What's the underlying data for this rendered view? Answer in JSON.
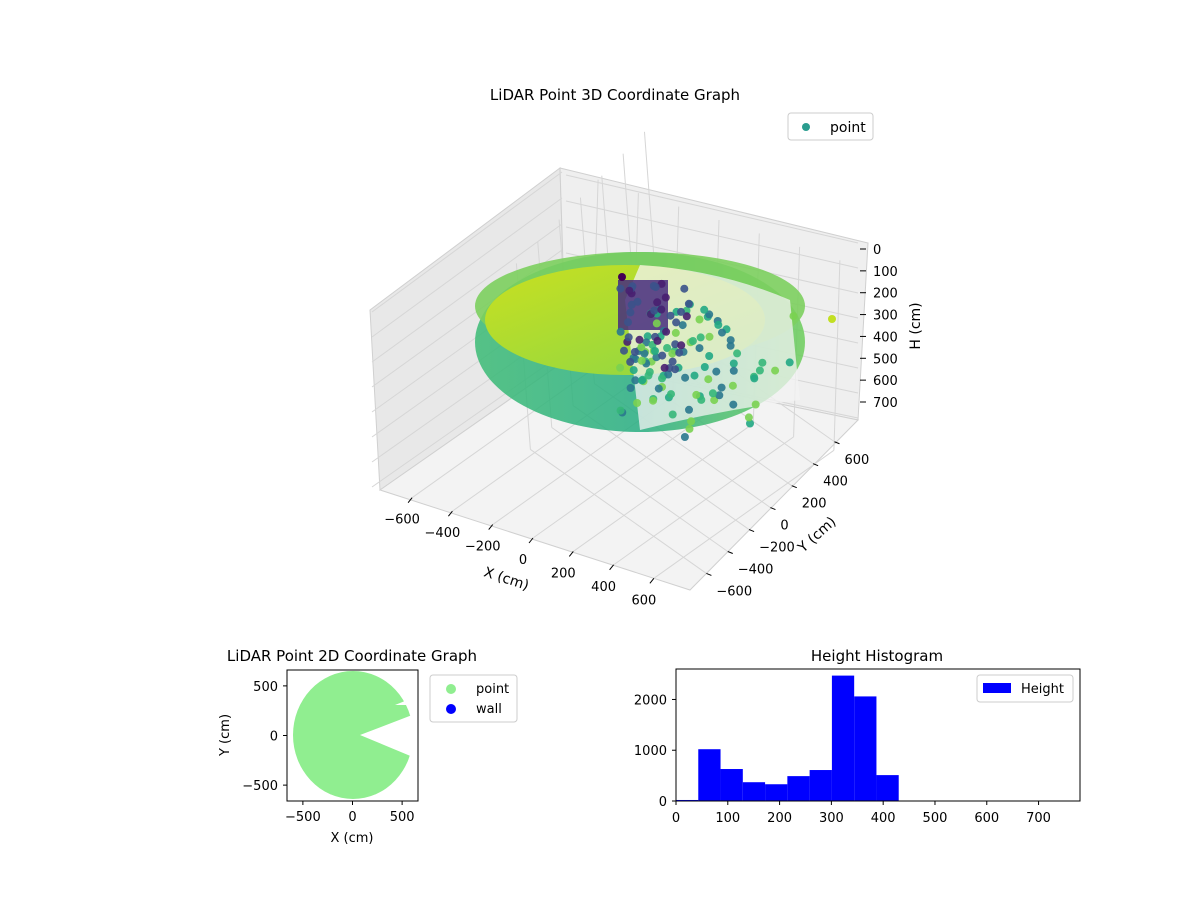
{
  "chart_data": [
    {
      "type": "scatter",
      "title": "LiDAR Point 3D Coordinate Graph",
      "xlabel": "X (cm)",
      "ylabel": "Y (cm)",
      "zlabel": "H (cm)",
      "legend": [
        "point"
      ],
      "legend_loc": "upper right",
      "grid": true,
      "x_ticks": [
        "−600",
        "−400",
        "−200",
        "0",
        "200",
        "400",
        "600"
      ],
      "y_ticks": [
        "−600",
        "−400",
        "−200",
        "0",
        "200",
        "400",
        "600"
      ],
      "z_ticks": [
        "0",
        "100",
        "200",
        "300",
        "400",
        "500",
        "600",
        "700"
      ],
      "xlim": [
        -650,
        650
      ],
      "ylim": [
        -650,
        650
      ],
      "zlim": [
        780,
        0
      ],
      "colormap": "viridis",
      "colors": {
        "legend_marker": "#2a9d8f"
      }
    },
    {
      "type": "scatter",
      "title": "LiDAR Point 2D Coordinate Graph",
      "xlabel": "X (cm)",
      "ylabel": "Y (cm)",
      "x_ticks": [
        "−500",
        "0",
        "500"
      ],
      "y_ticks": [
        "500",
        "0",
        "−500"
      ],
      "xlim": [
        -660,
        660
      ],
      "ylim": [
        -660,
        660
      ],
      "legend_loc": "outside right",
      "series": [
        {
          "name": "point",
          "color": "#90ee90"
        },
        {
          "name": "wall",
          "color": "#0000ff"
        }
      ]
    },
    {
      "type": "bar",
      "title": "Height Histogram",
      "legend": [
        "Height"
      ],
      "legend_loc": "upper right",
      "color": "#0000ff",
      "bins": [
        {
          "x0": 0,
          "x1": 43,
          "count": 20
        },
        {
          "x0": 43,
          "x1": 86,
          "count": 1020
        },
        {
          "x0": 86,
          "x1": 129,
          "count": 630
        },
        {
          "x0": 129,
          "x1": 172,
          "count": 370
        },
        {
          "x0": 172,
          "x1": 215,
          "count": 330
        },
        {
          "x0": 215,
          "x1": 258,
          "count": 490
        },
        {
          "x0": 258,
          "x1": 301,
          "count": 610
        },
        {
          "x0": 301,
          "x1": 344,
          "count": 2470
        },
        {
          "x0": 344,
          "x1": 387,
          "count": 2060
        },
        {
          "x0": 387,
          "x1": 430,
          "count": 510
        }
      ],
      "x_ticks": [
        "0",
        "100",
        "200",
        "300",
        "400",
        "500",
        "600",
        "700"
      ],
      "y_ticks": [
        "0",
        "1000",
        "2000"
      ],
      "xlim": [
        0,
        780
      ],
      "ylim": [
        0,
        2600
      ]
    }
  ]
}
